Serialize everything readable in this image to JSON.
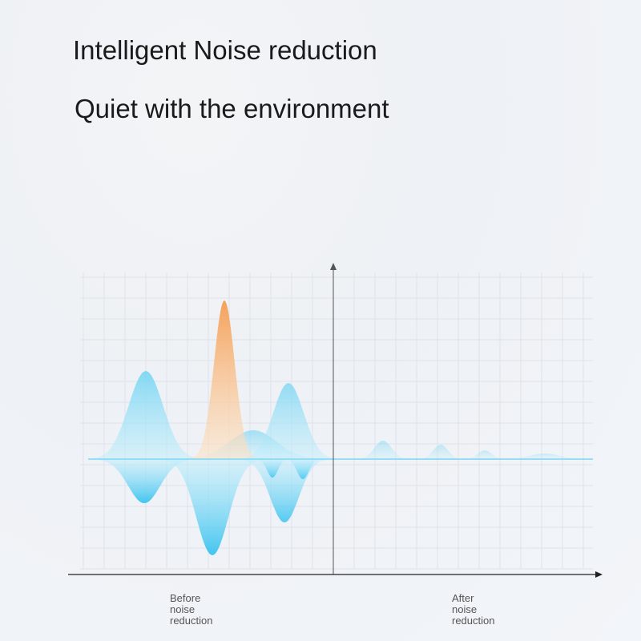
{
  "title": "Intelligent Noise reduction",
  "subtitle": "Quiet with the environment",
  "labels": {
    "before": [
      "Before",
      "noise",
      "reduction"
    ],
    "after": [
      "After",
      "noise",
      "reduction"
    ]
  },
  "colors": {
    "blue_wave": "#3fc2ee",
    "orange_wave": "#f5a45e",
    "axis": "#333333",
    "grid": "#dfe3ea"
  }
}
